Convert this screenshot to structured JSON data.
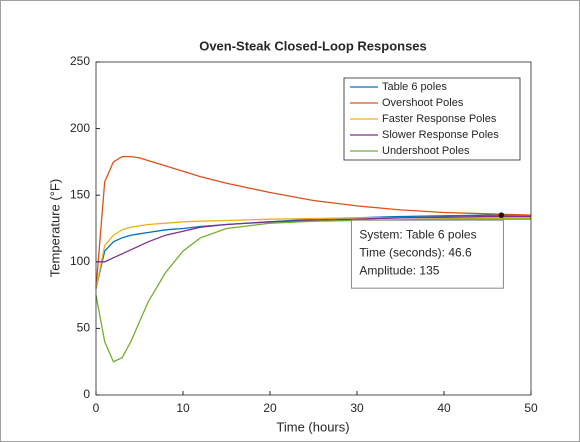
{
  "chart_data": {
    "type": "line",
    "title": "Oven-Steak Closed-Loop Responses",
    "xlabel": "Time (hours)",
    "ylabel": "Temperature (°F)",
    "x": [
      0,
      1,
      2,
      3,
      4,
      5,
      6,
      8,
      10,
      12,
      15,
      20,
      25,
      30,
      35,
      40,
      45,
      50
    ],
    "series": [
      {
        "name": "Table 6 poles",
        "color": "#0072BD",
        "values": [
          80,
          108,
          115,
          118,
          120,
          121,
          122,
          124,
          125,
          126.5,
          128,
          130,
          132,
          133,
          134,
          134.5,
          135,
          135
        ]
      },
      {
        "name": "Overshoot Poles",
        "color": "#D95319",
        "values": [
          80,
          160,
          175,
          179,
          179,
          178,
          176,
          172,
          168,
          164,
          159,
          152,
          146,
          142,
          139,
          137,
          136,
          135
        ]
      },
      {
        "name": "Faster Response Poles",
        "color": "#EDB120",
        "values": [
          80,
          112,
          120,
          124,
          126,
          127,
          128,
          129,
          130,
          130.5,
          131,
          132,
          132.5,
          133,
          133,
          133,
          133,
          133
        ]
      },
      {
        "name": "Slower Response Poles",
        "color": "#7E2F8E",
        "values": [
          100,
          100,
          103,
          106,
          109,
          112,
          115,
          120,
          123,
          126,
          128,
          130,
          131,
          132,
          133,
          133.5,
          134,
          134
        ]
      },
      {
        "name": "Undershoot Poles",
        "color": "#77AC30",
        "values": [
          75,
          40,
          25,
          28,
          40,
          55,
          70,
          92,
          108,
          118,
          125,
          129,
          130.5,
          131,
          131.5,
          132,
          132,
          132
        ]
      }
    ],
    "xlim": [
      0,
      50
    ],
    "xticks": [
      0,
      10,
      20,
      30,
      40,
      50
    ],
    "ylim": [
      0,
      250
    ],
    "yticks": [
      0,
      50,
      100,
      150,
      200,
      250
    ],
    "grid": false,
    "legend": "northeast",
    "datatip": {
      "x": 46.6,
      "y": 135,
      "lines": [
        "System: Table 6 poles",
        "Time (seconds): 46.6",
        "Amplitude: 135"
      ]
    }
  }
}
